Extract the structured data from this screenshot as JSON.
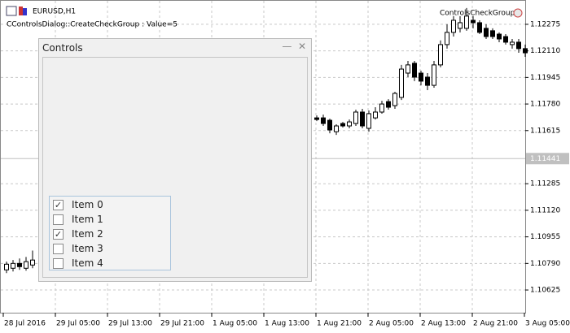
{
  "header": {
    "symbol": "EURUSD,H1",
    "status": "CControlsDialog::CreateCheckGroup : Value=5",
    "expert": "ControlsCheckGroup"
  },
  "chart_data": {
    "type": "candlestick",
    "categories": [
      "28 Jul 2016",
      "29 Jul 05:00",
      "29 Jul 13:00",
      "29 Jul 21:00",
      "1 Aug 05:00",
      "1 Aug 13:00",
      "1 Aug 21:00",
      "2 Aug 05:00",
      "2 Aug 13:00",
      "2 Aug 21:00",
      "3 Aug 05:00"
    ],
    "ylim": [
      1.10484,
      1.12426
    ],
    "yticks": [
      1.12275,
      {
        "value": 1.1211,
        "label": "1.12110"
      },
      1.11945,
      {
        "value": 1.1178,
        "label": "1.11780"
      },
      1.11615,
      1.11285,
      {
        "value": 1.1112,
        "label": "1.11120"
      },
      1.10955,
      {
        "value": 1.1079,
        "label": "1.10790"
      },
      1.10625
    ],
    "current_price": 1.11441,
    "grid": true,
    "ohlc": [
      [
        1.1075,
        1.10801,
        1.1073,
        1.10785
      ],
      [
        1.1076,
        1.10811,
        1.1074,
        1.1079
      ],
      [
        1.1079,
        1.10821,
        1.1075,
        1.1077
      ],
      [
        1.1076,
        1.1083,
        1.10745,
        1.10801
      ],
      [
        1.1078,
        1.1087,
        1.1076,
        1.10811
      ],
      [
        1.11694,
        1.11709,
        1.11674,
        1.11684
      ],
      [
        1.11694,
        1.11714,
        1.11644,
        1.11659
      ],
      [
        1.11679,
        1.11689,
        1.11598,
        1.11619
      ],
      [
        1.11608,
        1.11654,
        1.11588,
        1.11644
      ],
      [
        1.11659,
        1.11669,
        1.11634,
        1.11644
      ],
      [
        1.11644,
        1.11684,
        1.11629,
        1.11669
      ],
      [
        1.11659,
        1.11745,
        1.11644,
        1.1173
      ],
      [
        1.1173,
        1.1175,
        1.11629,
        1.11644
      ],
      [
        1.11629,
        1.1174,
        1.11608,
        1.1172
      ],
      [
        1.11694,
        1.1176,
        1.11684,
        1.1173
      ],
      [
        1.1173,
        1.118,
        1.1172,
        1.1178
      ],
      [
        1.11795,
        1.1181,
        1.11745,
        1.1176
      ],
      [
        1.1177,
        1.11856,
        1.1175,
        1.11846
      ],
      [
        1.11821,
        1.12023,
        1.11805,
        1.11997
      ],
      [
        1.11972,
        1.12048,
        1.11947,
        1.12023
      ],
      [
        1.12033,
        1.12048,
        1.11922,
        1.11947
      ],
      [
        1.11972,
        1.11987,
        1.11896,
        1.11922
      ],
      [
        1.11947,
        1.11972,
        1.11866,
        1.11896
      ],
      [
        1.11896,
        1.12048,
        1.11881,
        1.12023
      ],
      [
        1.12023,
        1.12175,
        1.12008,
        1.12149
      ],
      [
        1.12149,
        1.12275,
        1.12124,
        1.12225
      ],
      [
        1.12225,
        1.12326,
        1.12199,
        1.123
      ],
      [
        1.1225,
        1.12326,
        1.12225,
        1.12285
      ],
      [
        1.1225,
        1.12376,
        1.12235,
        1.12326
      ],
      [
        1.123,
        1.12326,
        1.1225,
        1.12285
      ],
      [
        1.12285,
        1.123,
        1.12214,
        1.12225
      ],
      [
        1.1225,
        1.12275,
        1.12184,
        1.12199
      ],
      [
        1.12235,
        1.1225,
        1.12184,
        1.12199
      ],
      [
        1.12214,
        1.12225,
        1.12164,
        1.12184
      ],
      [
        1.12199,
        1.12214,
        1.12149,
        1.12164
      ],
      [
        1.12149,
        1.12184,
        1.12124,
        1.12164
      ],
      [
        1.12164,
        1.12184,
        1.12098,
        1.12124
      ],
      [
        1.12124,
        1.12149,
        1.12073,
        1.12098
      ]
    ]
  },
  "dialog": {
    "title": "Controls",
    "items": [
      {
        "label": "Item 0",
        "checked": true
      },
      {
        "label": "Item 1",
        "checked": false
      },
      {
        "label": "Item 2",
        "checked": true
      },
      {
        "label": "Item 3",
        "checked": false
      },
      {
        "label": "Item 4",
        "checked": false
      }
    ]
  }
}
